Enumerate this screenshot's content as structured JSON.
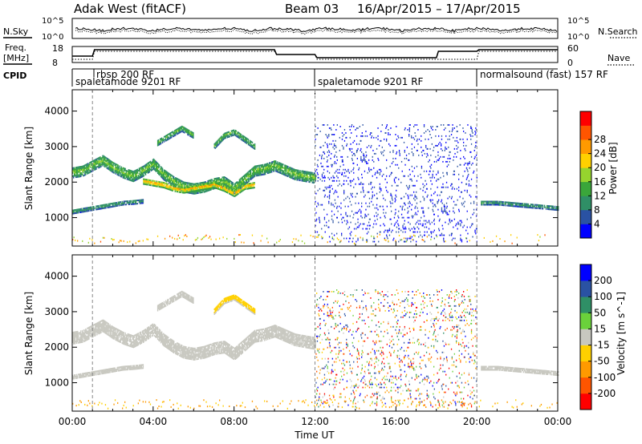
{
  "header": {
    "station": "Adak West (fitACF)",
    "beam": "Beam 03",
    "date_range": "16/Apr/2015 – 17/Apr/2015"
  },
  "strip_labels": {
    "nsky": "N.Sky",
    "nsearch": "N.Search",
    "freq": "Freq.",
    "freq_unit": "[MHz]",
    "nave": "Nave",
    "cpid": "CPID"
  },
  "colors": {
    "power": [
      "#0000ff",
      "#2a52a3",
      "#2f8f66",
      "#3aa63a",
      "#96d42e",
      "#ffd000",
      "#ff9a00",
      "#ff5500",
      "#ff0000"
    ],
    "velocity": [
      "#0000ff",
      "#2a52a3",
      "#2f8f66",
      "#6ad13b",
      "#c8c8c0",
      "#ffd000",
      "#ff9a00",
      "#ff5500",
      "#ff0000"
    ],
    "ground_scatter": "#c8c8c0"
  },
  "chart_data": [
    {
      "type": "line",
      "name": "noise",
      "y_ticks": [
        "10^5",
        "10^0"
      ],
      "y_ticks_right": [
        "10^5",
        "10^0"
      ],
      "series": [
        {
          "name": "N.Sky",
          "style": "solid"
        },
        {
          "name": "N.Search",
          "style": "dotted"
        }
      ]
    },
    {
      "type": "line",
      "name": "frequency",
      "y_ticks": [
        "18",
        "8"
      ],
      "y_ticks_right": [
        "60",
        "0"
      ],
      "x": [
        0,
        1,
        1.1,
        10,
        10.1,
        12,
        12.1,
        18,
        18.1,
        20,
        20.1,
        24
      ],
      "series": [
        {
          "name": "Freq.",
          "style": "solid",
          "values": [
            12,
            12,
            16,
            16,
            13,
            13,
            11,
            11,
            15,
            15,
            16,
            16
          ]
        },
        {
          "name": "Nave",
          "style": "dotted",
          "values": [
            10,
            10,
            15,
            15,
            13,
            13,
            10,
            10,
            10,
            10,
            15,
            15
          ]
        }
      ]
    },
    {
      "type": "table",
      "name": "cpid",
      "segments": [
        {
          "label": "rbsp 200 RF",
          "start": 1.0,
          "end": 1.1
        },
        {
          "label": "spaletamode 9201 RF",
          "start": 0,
          "end": 12
        },
        {
          "label": "spaletamode 9201 RF",
          "start": 12,
          "end": 20
        },
        {
          "label": "normalsound (fast) 157 RF",
          "start": 20,
          "end": 24
        }
      ]
    },
    {
      "type": "heatmap",
      "name": "power",
      "ylabel": "Slant Range [km]",
      "xlim": [
        0,
        24
      ],
      "ylim": [
        200,
        4600
      ],
      "y_ticks": [
        1000,
        2000,
        3000,
        4000
      ],
      "colorbar": {
        "label": "Power [dB]",
        "ticks": [
          4,
          8,
          12,
          16,
          20,
          24,
          28
        ],
        "range": [
          0,
          30
        ]
      },
      "features": [
        {
          "kind": "band",
          "x": [
            0,
            0.5,
            1,
            1.5,
            2,
            2.5,
            3,
            3.5
          ],
          "range": [
            1150,
            1200,
            1250,
            1300,
            1350,
            1400,
            1420,
            1450
          ],
          "width": 120,
          "value": 10
        },
        {
          "kind": "band",
          "x": [
            0,
            0.5,
            1,
            1.5,
            2,
            2.5,
            3,
            3.5,
            4,
            4.5,
            5,
            5.5,
            6,
            6.5,
            7,
            7.5,
            8,
            8.5,
            9,
            9.5,
            10,
            11,
            12
          ],
          "range": [
            2250,
            2300,
            2450,
            2600,
            2400,
            2250,
            2150,
            2300,
            2500,
            2200,
            2000,
            1850,
            1800,
            1850,
            1950,
            2000,
            1800,
            2050,
            2300,
            2350,
            2450,
            2200,
            2100
          ],
          "width": 300,
          "value": 14
        },
        {
          "kind": "band",
          "x": [
            3.5,
            4,
            4.5,
            5,
            5.5,
            6,
            6.5,
            7,
            7.5,
            8,
            8.5,
            9
          ],
          "range": [
            2000,
            1950,
            1900,
            1800,
            1750,
            1800,
            1850,
            1900,
            1800,
            1650,
            1850,
            1900
          ],
          "width": 150,
          "value": 22
        },
        {
          "kind": "band",
          "x": [
            4.2,
            4.8,
            5.4,
            6.0
          ],
          "range": [
            3100,
            3300,
            3500,
            3300
          ],
          "width": 180,
          "value": 12
        },
        {
          "kind": "band",
          "x": [
            7.0,
            7.5,
            8.0,
            8.5,
            9.0
          ],
          "range": [
            3000,
            3300,
            3400,
            3200,
            3000
          ],
          "width": 180,
          "value": 12
        },
        {
          "kind": "band",
          "x": [
            20.2,
            21,
            22,
            23,
            24
          ],
          "range": [
            1400,
            1400,
            1350,
            1300,
            1250
          ],
          "width": 120,
          "value": 10
        },
        {
          "kind": "noise",
          "x": [
            12,
            20
          ],
          "range": [
            300,
            3600
          ],
          "density": 0.06,
          "value": 3
        }
      ]
    },
    {
      "type": "heatmap",
      "name": "velocity",
      "ylabel": "Slant Range [km]",
      "xlabel": "Time UT",
      "xlim": [
        0,
        24
      ],
      "ylim": [
        200,
        4600
      ],
      "x_ticks": [
        "00:00",
        "04:00",
        "08:00",
        "12:00",
        "16:00",
        "20:00",
        "00:00"
      ],
      "y_ticks": [
        1000,
        2000,
        3000,
        4000
      ],
      "colorbar": {
        "label": "Velocity [m s^-1]",
        "ticks": [
          200,
          100,
          50,
          15,
          -15,
          -50,
          -100,
          -200
        ],
        "range": [
          -250,
          250
        ]
      },
      "features": [
        {
          "kind": "band",
          "x": [
            0,
            0.5,
            1,
            1.5,
            2,
            2.5,
            3,
            3.5
          ],
          "range": [
            1150,
            1200,
            1250,
            1300,
            1350,
            1400,
            1420,
            1450
          ],
          "width": 120,
          "value": "ground"
        },
        {
          "kind": "band",
          "x": [
            0,
            0.5,
            1,
            1.5,
            2,
            2.5,
            3,
            3.5,
            4,
            4.5,
            5,
            5.5,
            6,
            6.5,
            7,
            7.5,
            8,
            8.5,
            9,
            9.5,
            10,
            11,
            12
          ],
          "range": [
            2250,
            2300,
            2450,
            2600,
            2400,
            2250,
            2150,
            2300,
            2500,
            2200,
            2000,
            1850,
            1800,
            1850,
            1950,
            2000,
            1800,
            2050,
            2300,
            2350,
            2450,
            2200,
            2100
          ],
          "width": 350,
          "value": "ground"
        },
        {
          "kind": "band",
          "x": [
            4.2,
            4.8,
            5.4,
            6.0
          ],
          "range": [
            3100,
            3300,
            3500,
            3300
          ],
          "width": 180,
          "value": "ground"
        },
        {
          "kind": "band",
          "x": [
            7.0,
            7.5,
            8.0,
            8.5,
            9.0
          ],
          "range": [
            3000,
            3300,
            3400,
            3200,
            3000
          ],
          "width": 180,
          "value": -40
        },
        {
          "kind": "band",
          "x": [
            20.2,
            21,
            22,
            23,
            24
          ],
          "range": [
            1400,
            1400,
            1350,
            1300,
            1250
          ],
          "width": 120,
          "value": "ground"
        },
        {
          "kind": "noise",
          "x": [
            12,
            20
          ],
          "range": [
            300,
            3600
          ],
          "density": 0.06,
          "value": "mixed"
        }
      ]
    }
  ]
}
